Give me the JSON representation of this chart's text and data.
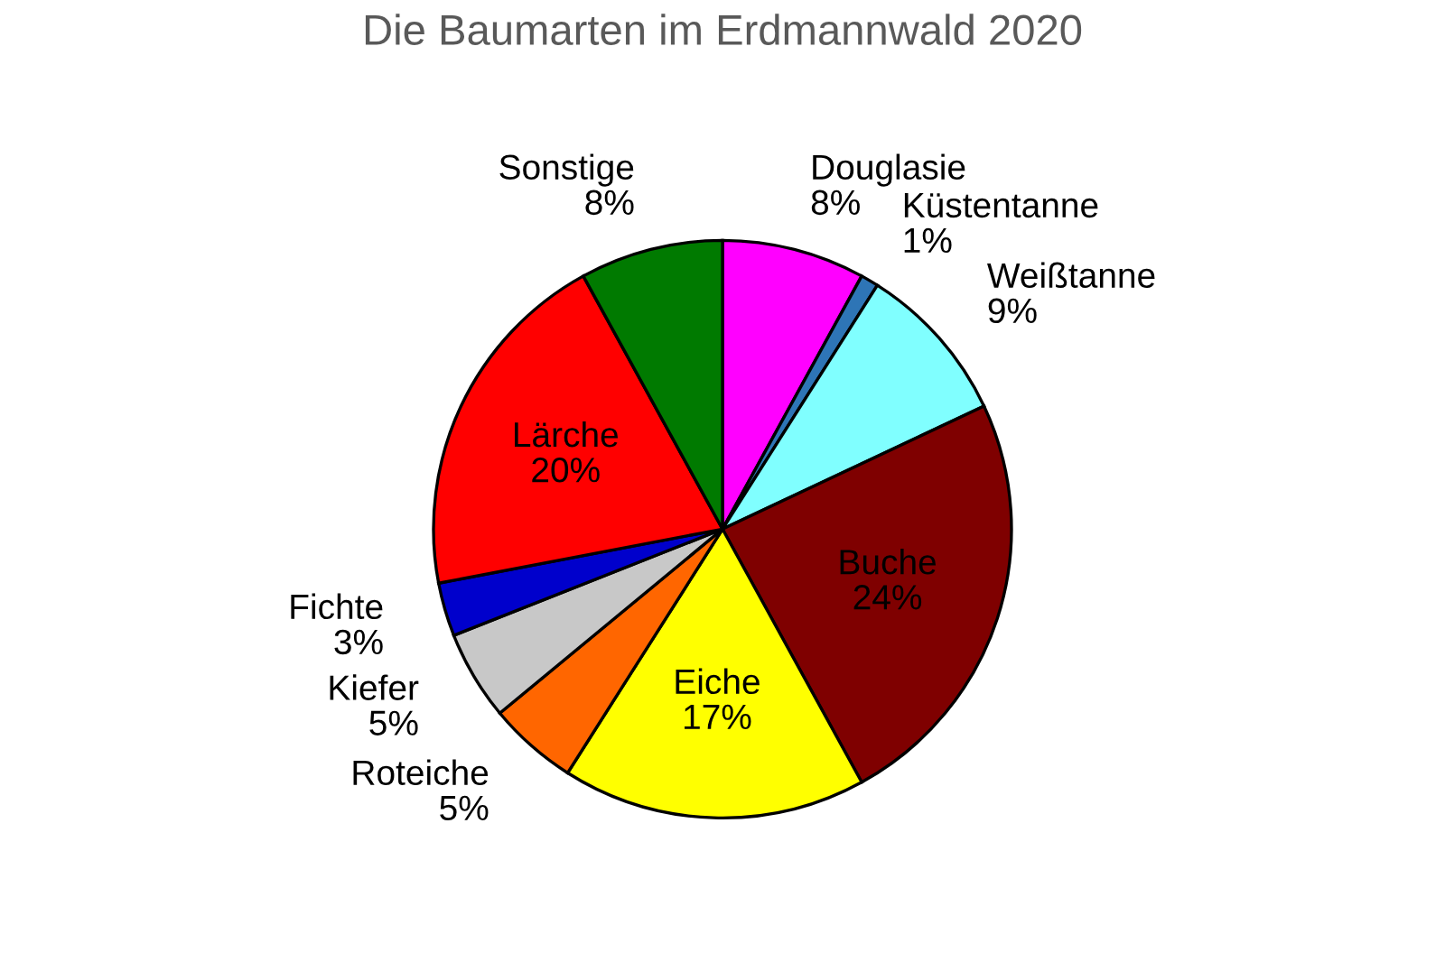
{
  "chart_data": {
    "type": "pie",
    "title": "Die Baumarten im Erdmannwald 2020",
    "categories": [
      "Douglasie",
      "Küstentanne",
      "Weißtanne",
      "Buche",
      "Eiche",
      "Roteiche",
      "Kiefer",
      "Fichte",
      "Lärche",
      "Sonstige"
    ],
    "values": [
      8,
      1,
      9,
      24,
      17,
      5,
      5,
      3,
      20,
      8
    ],
    "value_labels": [
      "8%",
      "1%",
      "9%",
      "24%",
      "17%",
      "5%",
      "5%",
      "3%",
      "20%",
      "8%"
    ],
    "colors": [
      "#ff00ff",
      "#2e75b6",
      "#80ffff",
      "#7f0000",
      "#ffff00",
      "#ff6600",
      "#c8c8c8",
      "#0000cc",
      "#ff0000",
      "#007a00"
    ],
    "legend": false
  }
}
